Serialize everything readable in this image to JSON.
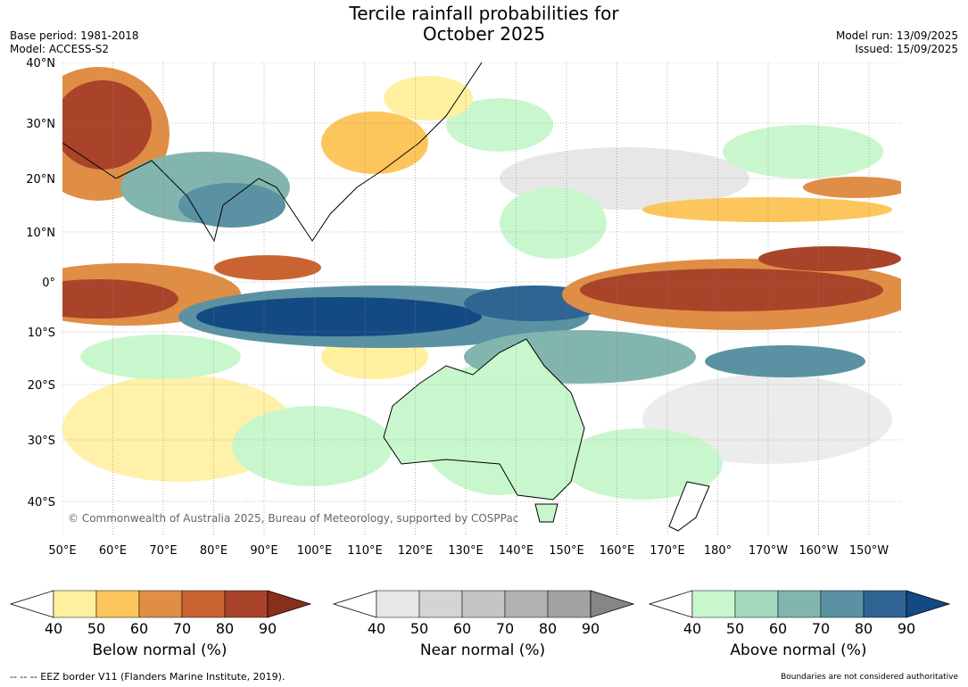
{
  "title_line1": "Tercile rainfall probabilities for",
  "title_line2": "October 2025",
  "meta_left": [
    "Base period: 1981-2018",
    "Model: ACCESS-S2"
  ],
  "meta_right": [
    "Model run: 13/09/2025",
    "Issued: 15/09/2025"
  ],
  "lat_labels": [
    "40°N",
    "30°N",
    "20°N",
    "10°N",
    "0°",
    "10°S",
    "20°S",
    "30°S",
    "40°S"
  ],
  "lon_labels": [
    "50°E",
    "60°E",
    "70°E",
    "80°E",
    "90°E",
    "100°E",
    "110°E",
    "120°E",
    "130°E",
    "140°E",
    "150°E",
    "160°E",
    "170°E",
    "180°",
    "170°W",
    "160°W",
    "150°W"
  ],
  "copyright": "© Commonwealth of Australia 2025, Bureau of Meteorology, supported by COSPPac",
  "colorbars": [
    {
      "title": "Below normal (%)",
      "ticks": [
        "40",
        "50",
        "60",
        "70",
        "80",
        "90"
      ],
      "colors": [
        "#fff0a0",
        "#fcc65d",
        "#e08e45",
        "#c96432",
        "#a9432a",
        "#8a2e1c"
      ]
    },
    {
      "title": "Near normal (%)",
      "ticks": [
        "40",
        "50",
        "60",
        "70",
        "80",
        "90"
      ],
      "colors": [
        "#e7e7e7",
        "#d4d4d4",
        "#c4c4c4",
        "#b2b2b2",
        "#a2a2a2",
        "#868686"
      ]
    },
    {
      "title": "Above normal (%)",
      "ticks": [
        "40",
        "50",
        "60",
        "70",
        "80",
        "90"
      ],
      "colors": [
        "#c9f7cd",
        "#a4d7bb",
        "#82b5ae",
        "#5a92a4",
        "#2f6493",
        "#134a84"
      ]
    }
  ],
  "footer_left": "--  --  -- EEZ border V11 (Flanders Marine Institute, 2019).",
  "footer_right": "Boundaries are not considered authoritative"
}
